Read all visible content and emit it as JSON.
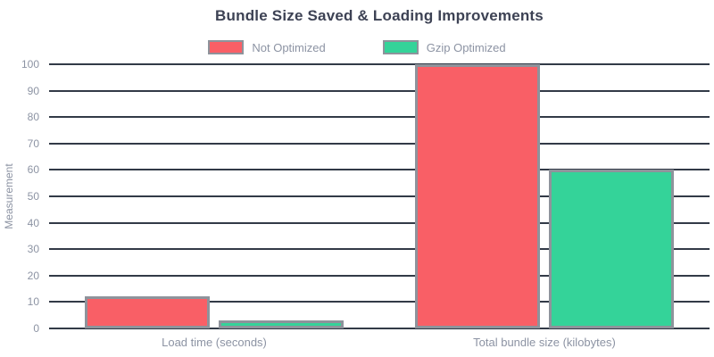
{
  "page": {
    "background": "#ffffff"
  },
  "chart_data": {
    "type": "bar",
    "title": "Bundle Size Saved & Loading Improvements",
    "categories": [
      "Load time (seconds)",
      "Total bundle size (kilobytes)"
    ],
    "series": [
      {
        "name": "Not Optimized",
        "fill": "#F95F66",
        "border": "#8E939B",
        "values": [
          12,
          100
        ]
      },
      {
        "name": "Gzip Optimized",
        "fill": "#34D399",
        "border": "#8E939B",
        "values": [
          3,
          60
        ]
      }
    ],
    "ylabel": "Measurement",
    "ylim": [
      0,
      100
    ],
    "yticks": [
      0,
      10,
      20,
      30,
      40,
      50,
      60,
      70,
      80,
      90,
      100
    ],
    "grid": true,
    "legend_position": "top",
    "colors": {
      "grid_line": "#323A47",
      "title_text": "#3D4254",
      "tick_text": "#8C93A3",
      "legend_text": "#8C93A3",
      "category_text": "#8C93A3"
    }
  }
}
